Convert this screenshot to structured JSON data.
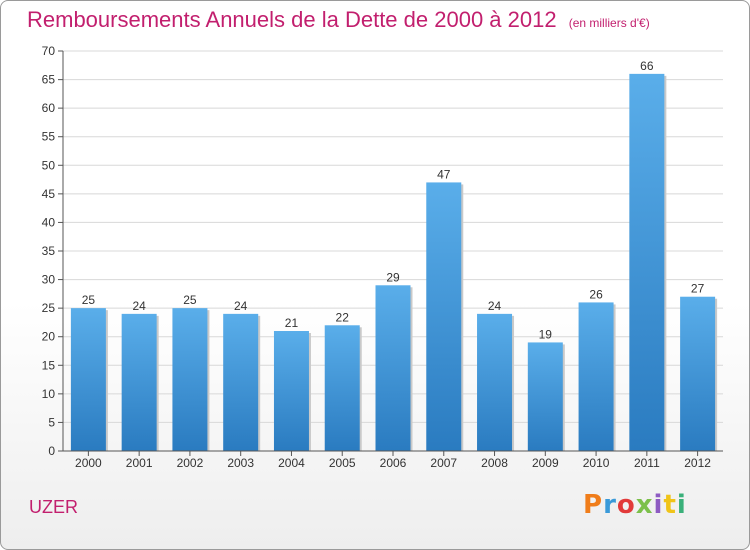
{
  "title": "Remboursements Annuels de la Dette de 2000 à 2012",
  "unit_label": "(en milliers d'€)",
  "place": "UZER",
  "logo": {
    "text": "Proxiti",
    "colors": [
      "#f07d1a",
      "#3a9ad9",
      "#e23a3a",
      "#7cc04a",
      "#8e5bc2",
      "#f0c419",
      "#3ab07a"
    ]
  },
  "chart_data": {
    "type": "bar",
    "categories": [
      "2000",
      "2001",
      "2002",
      "2003",
      "2004",
      "2005",
      "2006",
      "2007",
      "2008",
      "2009",
      "2010",
      "2011",
      "2012"
    ],
    "values": [
      25,
      24,
      25,
      24,
      21,
      22,
      29,
      47,
      24,
      19,
      26,
      66,
      27
    ],
    "value_labels": [
      "25",
      "24",
      "25",
      "24",
      "21",
      "22",
      "29",
      "47",
      "24",
      "19",
      "26",
      "66",
      "27"
    ],
    "ylim": [
      0,
      70
    ],
    "yticks": [
      0,
      5,
      10,
      15,
      20,
      25,
      30,
      35,
      40,
      45,
      50,
      55,
      60,
      65,
      70
    ],
    "grid": true,
    "bar_color_top": "#5aaeea",
    "bar_color_bottom": "#2a7bc0"
  }
}
